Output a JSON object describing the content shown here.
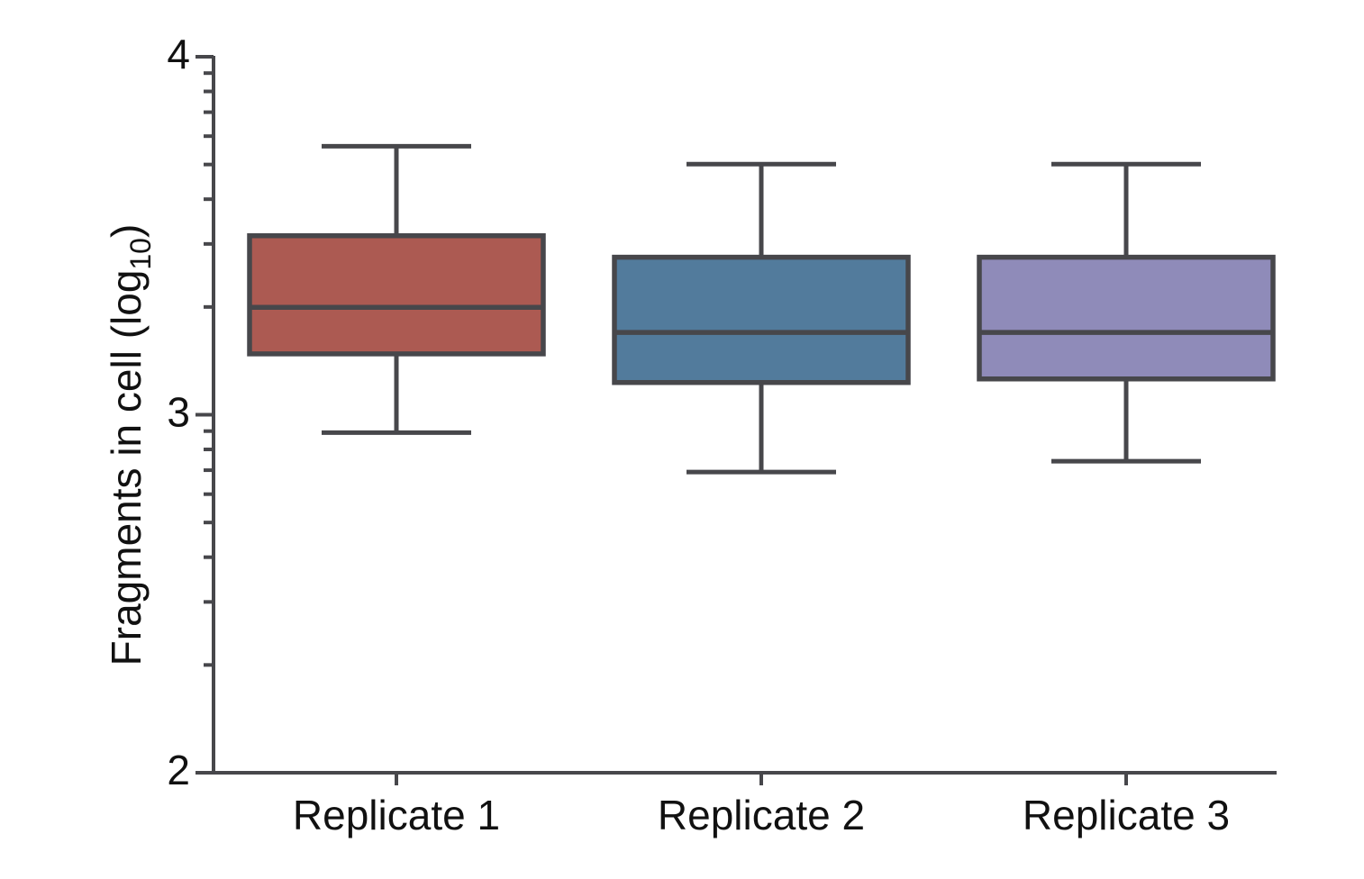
{
  "chart_data": {
    "type": "box",
    "title": "",
    "xlabel": "",
    "ylabel": "Fragments in cell (log10)",
    "ylabel_parts": {
      "prefix": "Fragments in cell (log",
      "subscript": "10",
      "suffix": ")"
    },
    "categories": [
      "Replicate 1",
      "Replicate 2",
      "Replicate 3"
    ],
    "series": [
      {
        "name": "Replicate 1",
        "whisker_low": 2.95,
        "q1": 3.17,
        "median": 3.3,
        "q3": 3.5,
        "whisker_high": 3.75,
        "color": "#AC5A52"
      },
      {
        "name": "Replicate 2",
        "whisker_low": 2.84,
        "q1": 3.09,
        "median": 3.23,
        "q3": 3.44,
        "whisker_high": 3.7,
        "color": "#527B9C"
      },
      {
        "name": "Replicate 3",
        "whisker_low": 2.87,
        "q1": 3.1,
        "median": 3.23,
        "q3": 3.44,
        "whisker_high": 3.7,
        "color": "#8F8BB9"
      }
    ],
    "ylim": [
      2,
      4
    ],
    "yticks": [
      4,
      3,
      2
    ],
    "minor_ticks": "logarithmic, 2-9 per decade",
    "grid": false,
    "legend": false,
    "outliers": [],
    "stroke_color": "#47474B",
    "text_color": "#111111"
  }
}
